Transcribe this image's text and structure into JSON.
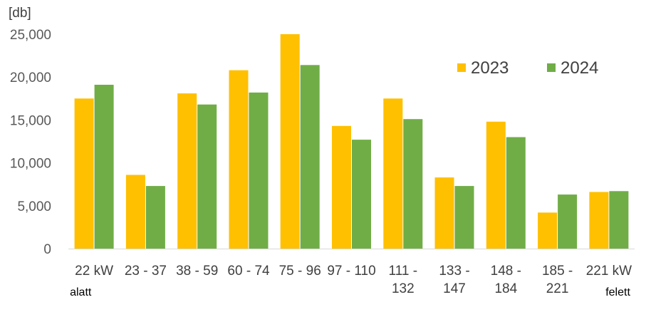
{
  "chart_data": {
    "type": "bar",
    "unit_label": "[db]",
    "categories": [
      {
        "line1": "22 kW",
        "line2": "alatt"
      },
      {
        "line1": "23 - 37",
        "line2": ""
      },
      {
        "line1": "38 - 59",
        "line2": ""
      },
      {
        "line1": "60 - 74",
        "line2": ""
      },
      {
        "line1": "75 - 96",
        "line2": ""
      },
      {
        "line1": "97 - 110",
        "line2": ""
      },
      {
        "line1": "111 -",
        "line2": "132"
      },
      {
        "line1": "133 -",
        "line2": "147"
      },
      {
        "line1": "148 -",
        "line2": "184"
      },
      {
        "line1": "185 -",
        "line2": "221"
      },
      {
        "line1": "221 kW",
        "line2": "felett"
      }
    ],
    "series": [
      {
        "name": "2023",
        "color": "#FFC000",
        "values": [
          17500,
          8600,
          18100,
          20800,
          25000,
          14300,
          17500,
          8300,
          14800,
          4200,
          6600
        ]
      },
      {
        "name": "2024",
        "color": "#70AD47",
        "values": [
          19100,
          7300,
          16800,
          18200,
          21400,
          12700,
          15100,
          7300,
          13000,
          6300,
          6700
        ]
      }
    ],
    "yticks": [
      "0",
      "5,000",
      "10,000",
      "15,000",
      "20,000",
      "25,000"
    ],
    "ylim": [
      0,
      25000
    ],
    "legend_position": "top-right",
    "grid": false
  }
}
